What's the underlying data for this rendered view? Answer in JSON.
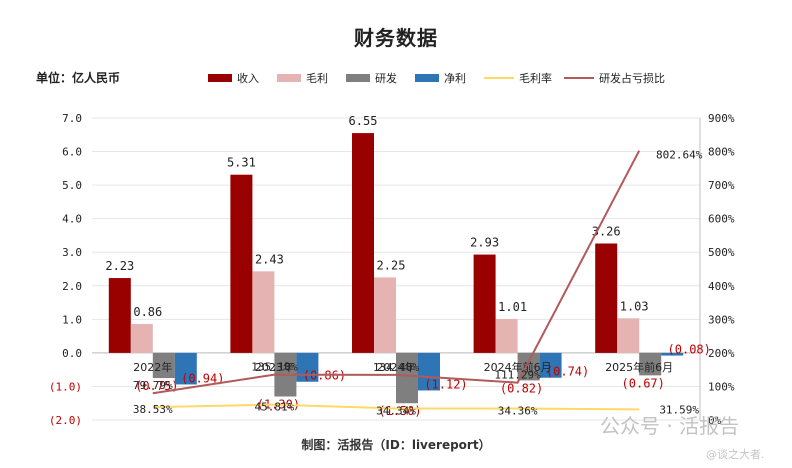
{
  "title": "财务数据",
  "unit_label": "单位：亿人民币",
  "footer": "制图：活报告（ID：livereport）",
  "watermark": {
    "text": "公众号 · 活报告",
    "subtext": "@谈之大者."
  },
  "chart_data": {
    "type": "bar",
    "categories": [
      "2022年",
      "2023年",
      "2024年",
      "2024年前6月",
      "2025年前6月"
    ],
    "series": [
      {
        "name": "收入",
        "kind": "bar",
        "axis": "left",
        "color": "#990000",
        "values": [
          2.23,
          5.31,
          6.55,
          2.93,
          3.26
        ],
        "labels": [
          "2.23",
          "5.31",
          "6.55",
          "2.93",
          "3.26"
        ]
      },
      {
        "name": "毛利",
        "kind": "bar",
        "axis": "left",
        "color": "#e6b3b3",
        "values": [
          0.86,
          2.43,
          2.25,
          1.01,
          1.03
        ],
        "labels": [
          "0.86",
          "2.43",
          "2.25",
          "1.01",
          "1.03"
        ]
      },
      {
        "name": "研发",
        "kind": "bar",
        "axis": "left",
        "color": "#7f7f7f",
        "values": [
          -0.75,
          -1.3,
          -1.5,
          -0.82,
          -0.67
        ],
        "labels": [
          "(0.75)",
          "(1.30)",
          "(1.50)",
          "(0.82)",
          "(0.67)"
        ]
      },
      {
        "name": "净利",
        "kind": "bar",
        "axis": "left",
        "color": "#2e75b6",
        "values": [
          -0.94,
          -0.86,
          -1.12,
          -0.74,
          -0.08
        ],
        "labels": [
          "(0.94)",
          "(0.86)",
          "(1.12)",
          "(0.74)",
          "(0.08)"
        ]
      },
      {
        "name": "毛利率",
        "kind": "line",
        "axis": "right",
        "color": "#ffd966",
        "values": [
          38.53,
          45.81,
          34.34,
          34.36,
          31.59
        ],
        "labels": [
          "38.53%",
          "45.81%",
          "34.34%",
          "34.36%",
          "31.59%"
        ]
      },
      {
        "name": "研发占亏损比",
        "kind": "line",
        "axis": "right",
        "color": "#b05a5a",
        "values": [
          79.79,
          135.1,
          134.4,
          111.29,
          802.64
        ],
        "labels": [
          "79.79%",
          "135.10%",
          "134.40%",
          "111.29%",
          "802.64%"
        ]
      }
    ],
    "y_left": {
      "range": [
        -2,
        7
      ],
      "ticks": [
        "(2.0)",
        "(1.0)",
        "0.0",
        "1.0",
        "2.0",
        "3.0",
        "4.0",
        "5.0",
        "6.0",
        "7.0"
      ]
    },
    "y_right": {
      "range": [
        0,
        900
      ],
      "ticks": [
        "0%",
        "100%",
        "200%",
        "300%",
        "400%",
        "500%",
        "600%",
        "700%",
        "800%",
        "900%"
      ]
    },
    "grid": true,
    "legend_position": "top"
  }
}
